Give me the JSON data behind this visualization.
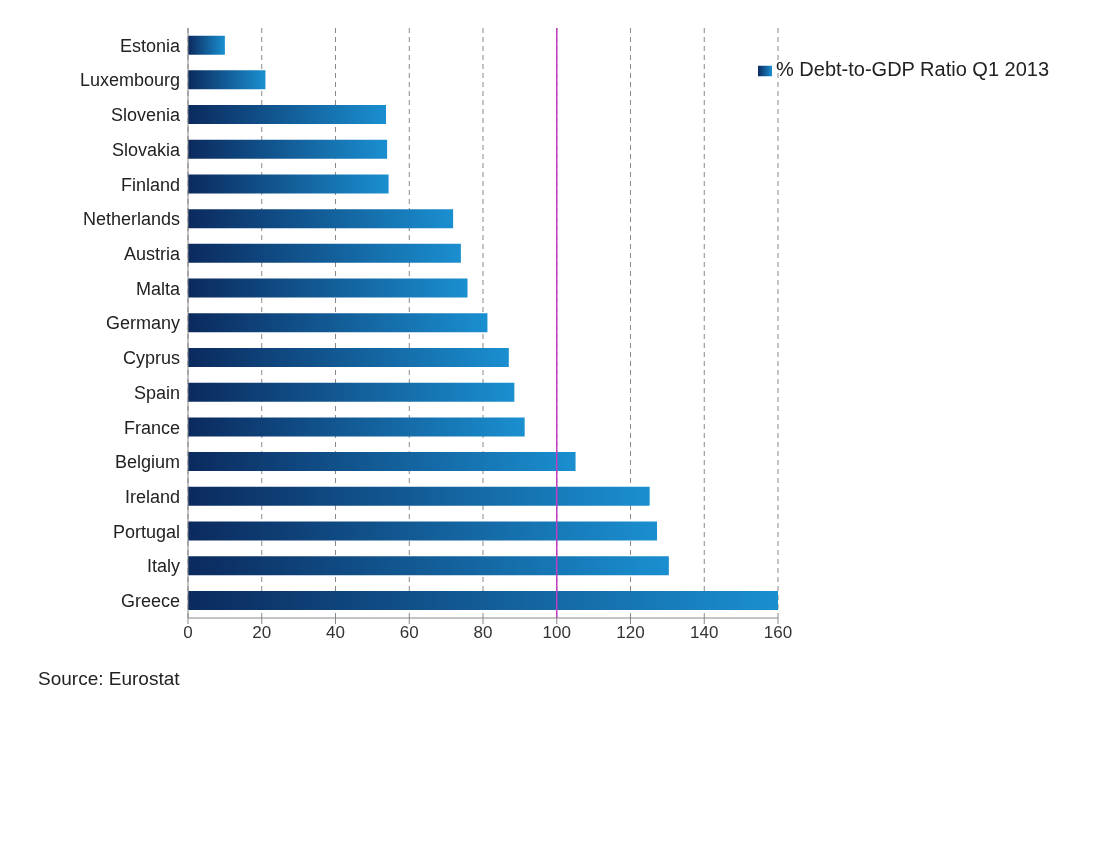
{
  "chart_data": {
    "type": "bar",
    "orientation": "horizontal",
    "categories": [
      "Estonia",
      "Luxembourg",
      "Slovenia",
      "Slovakia",
      "Finland",
      "Netherlands",
      "Austria",
      "Malta",
      "Germany",
      "Cyprus",
      "Spain",
      "France",
      "Belgium",
      "Ireland",
      "Portugal",
      "Italy",
      "Greece"
    ],
    "series": [
      {
        "name": "% Debt-to-GDP Ratio Q1 2013",
        "color": "#1a8fd0",
        "values": [
          10,
          21,
          53.7,
          54,
          54.4,
          71.9,
          74,
          75.8,
          81.2,
          87,
          88.5,
          91.3,
          105.1,
          125.2,
          127.2,
          130.4,
          160
        ]
      }
    ],
    "xlim": [
      0,
      160
    ],
    "xticks": [
      0,
      20,
      40,
      60,
      80,
      100,
      120,
      140,
      160
    ],
    "grid": "x",
    "legend": "top right",
    "ref_lines": [
      {
        "axis": "x",
        "value": 100,
        "color": "#c03cc0"
      }
    ],
    "annotations": [
      "Source: Eurostat"
    ]
  }
}
